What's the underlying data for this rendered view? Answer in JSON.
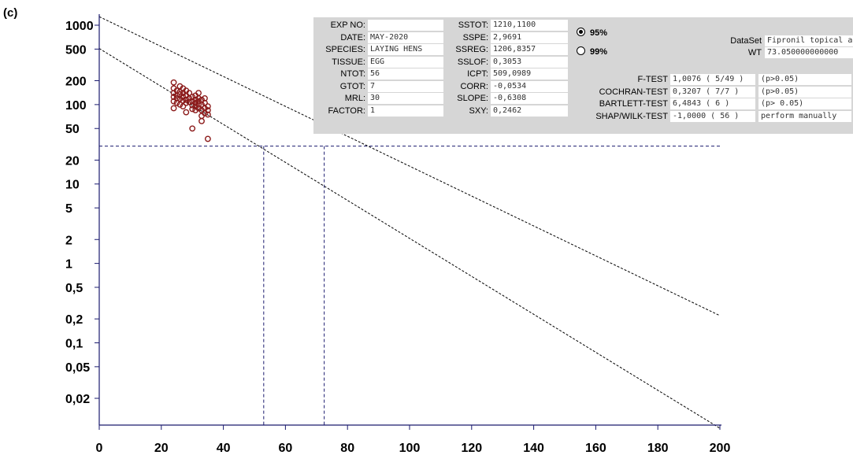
{
  "panel_label": "(c)",
  "info": {
    "col1": [
      {
        "label": "EXP NO:",
        "value": ""
      },
      {
        "label": "DATE:",
        "value": "MAY-2020"
      },
      {
        "label": "SPECIES:",
        "value": "LAYING HENS"
      },
      {
        "label": "TISSUE:",
        "value": "EGG"
      },
      {
        "label": "NTOT:",
        "value": "56"
      },
      {
        "label": "GTOT:",
        "value": "7"
      },
      {
        "label": "MRL:",
        "value": "30"
      },
      {
        "label": "FACTOR:",
        "value": "1"
      }
    ],
    "col2": [
      {
        "label": "SSTOT:",
        "value": "1210,1100"
      },
      {
        "label": "SSPE:",
        "value": "2,9691"
      },
      {
        "label": "SSREG:",
        "value": "1206,8357"
      },
      {
        "label": "SSLOF:",
        "value": "0,3053"
      },
      {
        "label": "ICPT:",
        "value": "509,0989"
      },
      {
        "label": "CORR:",
        "value": "-0,0534"
      },
      {
        "label": "SLOPE:",
        "value": "-0,6308"
      },
      {
        "label": "SXY:",
        "value": "0,2462"
      }
    ],
    "radio_95": "95%",
    "radio_99": "99%",
    "dataset_label": "DataSet",
    "dataset_value": "Fipronil topical ad",
    "wt_label": "WT",
    "wt_value": "73.050000000000",
    "tests": [
      {
        "label": "F-TEST",
        "value": "1,0076  ( 5/49 )",
        "result": "(p>0.05)"
      },
      {
        "label": "COCHRAN-TEST",
        "value": "0,3207  ( 7/7 )",
        "result": "(p>0.05)"
      },
      {
        "label": "BARTLETT-TEST",
        "value": "6,4843  ( 6 )",
        "result": "(p> 0.05)"
      },
      {
        "label": "SHAP/WILK-TEST",
        "value": "-1,0000  ( 56 )",
        "result": "perform manually"
      }
    ]
  },
  "chart_data": {
    "type": "scatter",
    "title": "",
    "xlabel": "",
    "ylabel": "",
    "y_scale": "log",
    "xlim": [
      0,
      200
    ],
    "ylim": [
      0.01,
      1200
    ],
    "x_ticks": [
      "0",
      "20",
      "40",
      "60",
      "80",
      "100",
      "120",
      "140",
      "160",
      "180",
      "200"
    ],
    "y_ticks": [
      {
        "value": 1000,
        "label": "1000"
      },
      {
        "value": 500,
        "label": "500"
      },
      {
        "value": 200,
        "label": "200"
      },
      {
        "value": 100,
        "label": "100"
      },
      {
        "value": 50,
        "label": "50"
      },
      {
        "value": 20,
        "label": "20"
      },
      {
        "value": 10,
        "label": "10"
      },
      {
        "value": 5,
        "label": "5"
      },
      {
        "value": 2,
        "label": "2"
      },
      {
        "value": 1,
        "label": "1"
      },
      {
        "value": 0.5,
        "label": "0,5"
      },
      {
        "value": 0.2,
        "label": "0,2"
      },
      {
        "value": 0.1,
        "label": "0,1"
      },
      {
        "value": 0.05,
        "label": "0,05"
      },
      {
        "value": 0.02,
        "label": "0,02"
      }
    ],
    "colors": {
      "points": "#8b1a1a",
      "lines": "#000000"
    },
    "regression_line": {
      "x": [
        0,
        200
      ],
      "y": [
        509,
        0.0084
      ]
    },
    "upper_tolerance_line": {
      "x": [
        0,
        200
      ],
      "y": [
        1280,
        0.22
      ]
    },
    "mrl_y": 30,
    "withdrawal_x": [
      53,
      72.5
    ],
    "points": [
      [
        24,
        190
      ],
      [
        24,
        160
      ],
      [
        24,
        140
      ],
      [
        24,
        125
      ],
      [
        24,
        110
      ],
      [
        24,
        90
      ],
      [
        25,
        150
      ],
      [
        25,
        130
      ],
      [
        25,
        120
      ],
      [
        25,
        105
      ],
      [
        26,
        170
      ],
      [
        26,
        145
      ],
      [
        26,
        135
      ],
      [
        26,
        118
      ],
      [
        26,
        100
      ],
      [
        27,
        160
      ],
      [
        27,
        140
      ],
      [
        27,
        125
      ],
      [
        27,
        112
      ],
      [
        27,
        95
      ],
      [
        28,
        150
      ],
      [
        28,
        130
      ],
      [
        28,
        115
      ],
      [
        28,
        105
      ],
      [
        28,
        80
      ],
      [
        29,
        140
      ],
      [
        29,
        120
      ],
      [
        29,
        108
      ],
      [
        30,
        125
      ],
      [
        30,
        110
      ],
      [
        30,
        98
      ],
      [
        30,
        88
      ],
      [
        30,
        50
      ],
      [
        31,
        130
      ],
      [
        31,
        115
      ],
      [
        31,
        105
      ],
      [
        31,
        95
      ],
      [
        31,
        85
      ],
      [
        32,
        140
      ],
      [
        32,
        120
      ],
      [
        32,
        110
      ],
      [
        32,
        100
      ],
      [
        32,
        90
      ],
      [
        33,
        115
      ],
      [
        33,
        100
      ],
      [
        33,
        85
      ],
      [
        33,
        72
      ],
      [
        33,
        62
      ],
      [
        34,
        120
      ],
      [
        34,
        105
      ],
      [
        34,
        90
      ],
      [
        34,
        78
      ],
      [
        35,
        95
      ],
      [
        35,
        85
      ],
      [
        35,
        75
      ],
      [
        35,
        37
      ]
    ]
  }
}
